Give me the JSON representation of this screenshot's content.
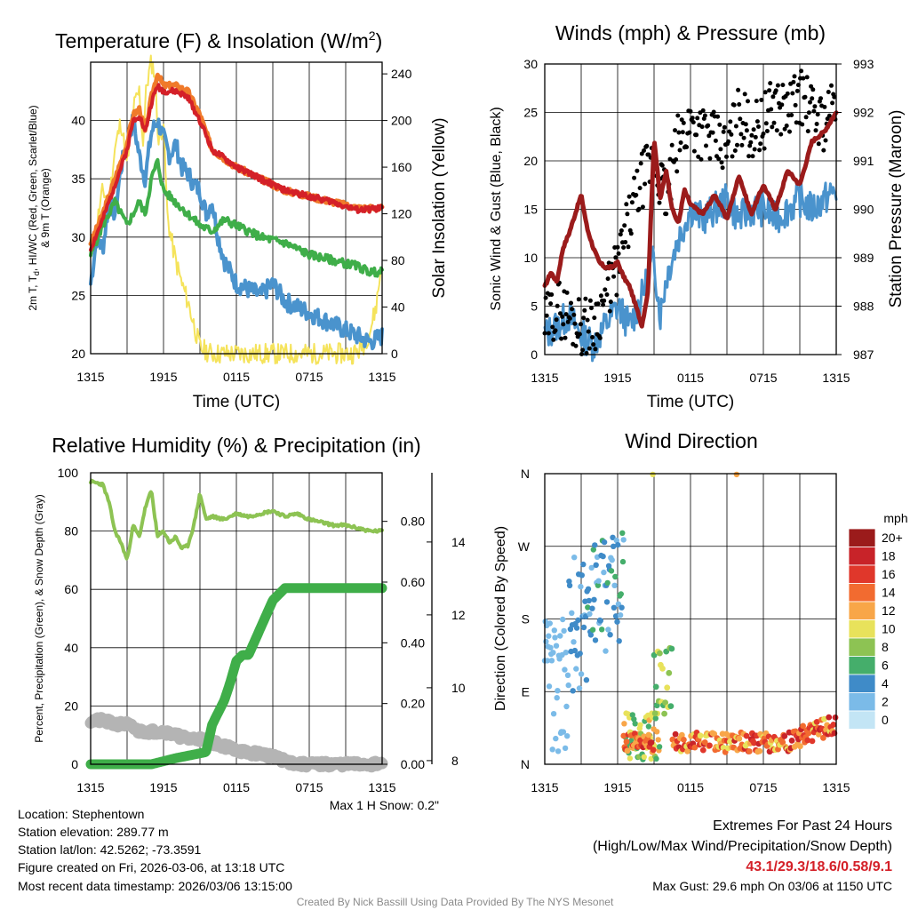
{
  "charts": {
    "temp": {
      "title": "Temperature (F) & Insolation (W/m",
      "title_sup": "2",
      "title_close": ")",
      "ylabel_line1": "2m T, T",
      "ylabel_sub": "d",
      "ylabel_line1_rest": ", HI/WC (Red, Green, Scarlet/Blue)",
      "ylabel_line2": "& 9m T (Orange)",
      "y2label": "Solar Insolation (Yellow)",
      "xlabel": "Time (UTC)"
    },
    "winds": {
      "title": "Winds (mph) & Pressure (mb)",
      "ylabel": "Sonic Wind & Gust (Blue, Black)",
      "y2label": "Station Pressure (Maroon)",
      "xlabel": "Time (UTC)"
    },
    "rh": {
      "title": "Relative Humidity (%) & Precipitation (in)",
      "ylabel": "Percent, Precipitation (Green), & Snow Depth (Gray)",
      "note": "Max 1 H Snow: 0.2\""
    },
    "wdir": {
      "title": "Wind Direction",
      "ylabel": "Direction (Colored By Speed)",
      "legend_title": "mph"
    }
  },
  "info": {
    "location": "Location: Stephentown",
    "elevation": "Station elevation: 289.77 m",
    "latlon": "Station lat/lon: 42.5262; -73.3591",
    "created": "Figure created on Fri, 2026-03-06, at 13:18 UTC",
    "recent": "Most recent data timestamp: 2026/03/06 13:15:00"
  },
  "extremes": {
    "title": "Extremes For Past 24 Hours",
    "subtitle": "(High/Low/Max Wind/Precipitation/Snow Depth)",
    "values": "43.1/29.3/18.6/0.58/9.1",
    "gust": "Max Gust: 29.6 mph On 03/06 at 1150 UTC",
    "values_color": "#d42028"
  },
  "credit": "Created By Nick Bassill Using Data Provided By The NYS Mesonet",
  "chart_data": [
    {
      "type": "line",
      "title": "Temperature (F) & Insolation (W/m2)",
      "xlabel": "Time (UTC)",
      "x_ticks": [
        "1315",
        "1915",
        "0115",
        "0715",
        "1315"
      ],
      "x_range_hours": [
        0,
        24
      ],
      "ylim": [
        20,
        45
      ],
      "y_ticks": [
        20,
        25,
        30,
        35,
        40
      ],
      "y2lim": [
        0,
        250
      ],
      "y2_ticks": [
        0,
        40,
        80,
        120,
        160,
        200,
        240
      ],
      "series": [
        {
          "name": "9m T (Orange)",
          "color": "#f07a2a",
          "axis": "left",
          "x": [
            0,
            1,
            2,
            3,
            3.5,
            4,
            4.5,
            5,
            5.5,
            6,
            7,
            8,
            9,
            10,
            12,
            14,
            16,
            18,
            20,
            22,
            24
          ],
          "y": [
            29.5,
            32,
            35,
            38,
            40.5,
            41,
            39,
            42,
            44,
            43,
            43,
            42.5,
            40.5,
            37.5,
            36,
            35,
            34,
            33.5,
            33,
            32.5,
            32.5
          ]
        },
        {
          "name": "2m T (Red)",
          "color": "#d42028",
          "axis": "left",
          "x": [
            0,
            1,
            2,
            3,
            3.5,
            4,
            4.5,
            5,
            5.5,
            6,
            7,
            8,
            9,
            10,
            12,
            14,
            16,
            18,
            20,
            22,
            24
          ],
          "y": [
            29,
            31.5,
            34.5,
            37.5,
            40,
            40.5,
            39,
            41.5,
            43,
            42.5,
            42.5,
            42,
            40,
            37.5,
            36,
            35,
            34,
            33.5,
            33,
            32.3,
            32.5
          ]
        },
        {
          "name": "Td (Green)",
          "color": "#3fae49",
          "axis": "left",
          "x": [
            0,
            1,
            2,
            3,
            4,
            4.5,
            5,
            5.5,
            6,
            7,
            8,
            9,
            10,
            11,
            12,
            14,
            16,
            18,
            20,
            22,
            23,
            24
          ],
          "y": [
            28.5,
            31,
            33,
            31,
            33,
            32,
            35,
            36.5,
            34,
            33,
            32,
            31,
            30.5,
            31.5,
            31,
            30,
            29.5,
            28.5,
            28,
            27.5,
            27,
            27
          ]
        },
        {
          "name": "HI/WC (Blue)",
          "color": "#4a93cd",
          "axis": "left",
          "x": [
            0,
            0.5,
            1,
            1.5,
            2,
            2.5,
            3,
            3.5,
            4,
            4.5,
            5,
            5.5,
            6,
            6.5,
            7,
            7.5,
            8,
            8.5,
            9,
            9.5,
            10,
            10.5,
            11,
            12,
            13,
            14,
            15,
            16,
            17,
            18,
            19,
            20,
            21,
            22,
            23,
            24
          ],
          "y": [
            26,
            30,
            29,
            33,
            32,
            36,
            38,
            40,
            37,
            35,
            39,
            40,
            38.5,
            37,
            38,
            36,
            35.5,
            34.5,
            34,
            32,
            33,
            30,
            28,
            26,
            25.5,
            25,
            26,
            24.5,
            24,
            23.5,
            23,
            22.5,
            22,
            21.5,
            21,
            21.5
          ]
        },
        {
          "name": "Solar Insolation (Yellow)",
          "color": "#f5e35b",
          "axis": "right",
          "x": [
            0,
            0.5,
            1,
            1.5,
            2,
            2.5,
            3,
            3.5,
            4,
            4.3,
            4.6,
            5,
            5.3,
            5.6,
            6,
            6.3,
            6.6,
            7,
            7.5,
            8,
            8.5,
            9,
            10,
            12,
            16,
            20,
            21.5,
            22,
            22.5,
            23,
            23.5,
            24
          ],
          "y": [
            80,
            110,
            140,
            130,
            175,
            200,
            160,
            210,
            225,
            180,
            230,
            250,
            240,
            180,
            200,
            120,
            100,
            80,
            60,
            45,
            25,
            5,
            0,
            0,
            0,
            0,
            0,
            2,
            8,
            20,
            40,
            80
          ]
        }
      ]
    },
    {
      "type": "line",
      "title": "Winds (mph) & Pressure (mb)",
      "xlabel": "Time (UTC)",
      "x_ticks": [
        "1315",
        "1915",
        "0115",
        "0715",
        "1315"
      ],
      "x_range_hours": [
        0,
        24
      ],
      "ylim": [
        0,
        30
      ],
      "y_ticks": [
        0,
        5,
        10,
        15,
        20,
        25,
        30
      ],
      "y2lim": [
        987,
        993
      ],
      "y2_ticks": [
        987,
        988,
        989,
        990,
        991,
        992,
        993
      ],
      "series": [
        {
          "name": "Sonic Wind (Blue)",
          "color": "#4a93cd",
          "axis": "left",
          "x": [
            0,
            1,
            2,
            3,
            4,
            5,
            6,
            7,
            8,
            9,
            9.5,
            10,
            11,
            12,
            13,
            14,
            15,
            16,
            17,
            18,
            19,
            20,
            21,
            22,
            23,
            24
          ],
          "y": [
            2,
            3,
            4,
            2,
            1,
            3,
            5,
            3,
            6,
            10,
            4,
            8,
            12,
            15,
            14,
            15,
            16,
            14,
            15,
            15,
            14,
            15,
            16,
            15,
            16,
            17
          ]
        },
        {
          "name": "Gust (Black)",
          "color": "#000000",
          "axis": "left",
          "x": [
            0,
            1,
            2,
            3,
            4,
            5,
            6,
            7,
            8,
            9,
            10,
            11,
            12,
            13,
            14,
            15,
            16,
            17,
            18,
            19,
            20,
            21,
            22,
            23,
            24
          ],
          "y": [
            3,
            5,
            4,
            3,
            3,
            6,
            9,
            14,
            18,
            20,
            16,
            22,
            24,
            23,
            22,
            21,
            25,
            23,
            24,
            26,
            25,
            27,
            25,
            24,
            26
          ]
        },
        {
          "name": "Station Pressure (Maroon)",
          "color": "#9b1b1b",
          "axis": "right",
          "x": [
            0,
            0.5,
            1,
            1.5,
            2,
            2.5,
            3,
            3.5,
            4,
            4.5,
            5,
            5.5,
            6,
            6.5,
            7,
            7.5,
            8,
            8.5,
            9,
            9.5,
            10,
            10.5,
            11,
            11.5,
            12,
            13,
            14,
            15,
            16,
            17,
            18,
            19,
            20,
            21,
            22,
            23,
            24
          ],
          "y": [
            988.4,
            988.7,
            988.5,
            989.2,
            989.5,
            989.9,
            990.3,
            989.6,
            989.2,
            988.9,
            988.8,
            988.8,
            988.9,
            988.6,
            988.4,
            988.0,
            987.6,
            988.3,
            991.5,
            990.2,
            990.8,
            990.0,
            989.7,
            990.4,
            990.1,
            989.9,
            990.3,
            989.8,
            990.7,
            989.9,
            990.5,
            990.0,
            990.8,
            990.5,
            991.4,
            991.6,
            992.0
          ]
        }
      ]
    },
    {
      "type": "line",
      "title": "Relative Humidity (%) & Precipitation (in)",
      "x_ticks": [
        "1315",
        "1915",
        "0115",
        "0715",
        "1315"
      ],
      "x_range_hours": [
        0,
        24
      ],
      "ylim": [
        0,
        100
      ],
      "y_ticks": [
        0,
        20,
        40,
        60,
        80,
        100
      ],
      "y2lim": [
        0,
        0.96
      ],
      "y2_ticks": [
        0.0,
        0.2,
        0.4,
        0.6,
        0.8
      ],
      "y3lim": [
        7.9,
        15.9
      ],
      "y3_ticks": [
        8,
        10,
        12,
        14
      ],
      "series": [
        {
          "name": "Relative Humidity (Green)",
          "color": "#8dc353",
          "axis": "left",
          "x": [
            0,
            1,
            1.5,
            2,
            2.5,
            3,
            3.5,
            4,
            4.5,
            5,
            5.5,
            6,
            6.5,
            7,
            7.5,
            8,
            8.5,
            9,
            9.5,
            10,
            11,
            12,
            13,
            14,
            15,
            16,
            17,
            18,
            19,
            20,
            21,
            22,
            23,
            24
          ],
          "y": [
            97,
            96,
            90,
            80,
            76,
            70,
            82,
            78,
            88,
            94,
            78,
            80,
            76,
            78,
            74,
            75,
            82,
            93,
            84,
            85,
            84,
            86,
            85,
            86,
            87,
            85,
            86,
            84,
            83,
            82,
            82,
            81,
            80,
            80
          ]
        },
        {
          "name": "Precipitation (Green)",
          "color": "#3fae49",
          "axis": "right",
          "x": [
            0,
            3,
            5,
            7,
            9.5,
            10,
            10.5,
            11,
            11.5,
            12,
            12.5,
            13,
            14,
            15,
            16,
            17,
            18,
            20,
            22,
            24
          ],
          "y": [
            0,
            0,
            0,
            0.02,
            0.04,
            0.13,
            0.17,
            0.21,
            0.27,
            0.34,
            0.36,
            0.36,
            0.45,
            0.54,
            0.58,
            0.58,
            0.58,
            0.58,
            0.58,
            0.58
          ]
        },
        {
          "name": "Snow Depth (Gray)",
          "color": "#b4b4b4",
          "axis": "snow",
          "x": [
            0,
            1,
            2,
            3,
            4,
            5,
            6,
            7,
            8,
            9,
            10,
            11,
            12,
            13,
            14,
            15,
            16,
            17,
            18,
            20,
            22,
            24
          ],
          "y": [
            9.1,
            9.1,
            9.0,
            9.0,
            8.8,
            8.8,
            8.8,
            8.7,
            8.6,
            8.6,
            8.5,
            8.4,
            8.3,
            8.2,
            8.2,
            8.1,
            8.0,
            7.9,
            7.9,
            7.9,
            7.9,
            7.9
          ]
        }
      ]
    },
    {
      "type": "scatter",
      "title": "Wind Direction",
      "x_ticks": [
        "1315",
        "1915",
        "0115",
        "0715",
        "1315"
      ],
      "x_range_hours": [
        0,
        24
      ],
      "y_categories": [
        "N",
        "E",
        "S",
        "W",
        "N"
      ],
      "y_degrees": [
        0,
        90,
        180,
        270,
        360
      ],
      "colorbar_labels": [
        "20+",
        "18",
        "16",
        "14",
        "12",
        "10",
        "8",
        "6",
        "4",
        "2",
        "0"
      ],
      "colorbar_colors": [
        "#9b1b1b",
        "#c82329",
        "#e0372b",
        "#f26b30",
        "#f8a648",
        "#e8e25b",
        "#8dc353",
        "#45ae6b",
        "#3f8bc8",
        "#7bbbe8",
        "#c3e5f5"
      ]
    }
  ],
  "colors": {
    "red": "#d42028",
    "orange": "#f07a2a",
    "green": "#3fae49",
    "blue": "#4a93cd",
    "yellow": "#f5e35b",
    "maroon": "#9b1b1b",
    "lightgreen": "#8dc353",
    "gray": "#b4b4b4"
  }
}
